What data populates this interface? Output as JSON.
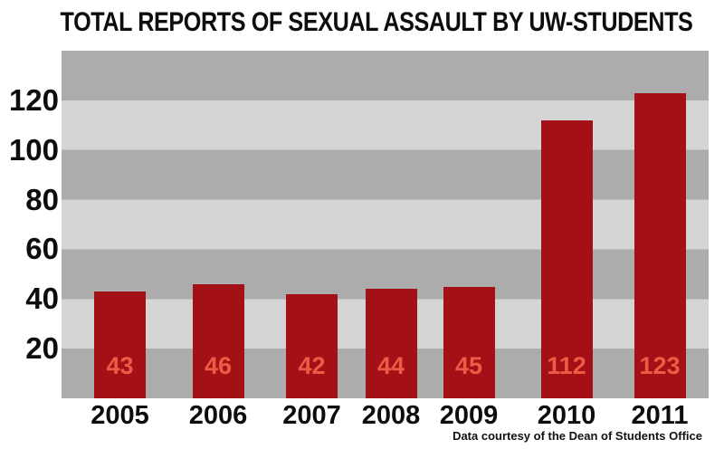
{
  "title": "TOTAL REPORTS OF SEXUAL ASSAULT BY UW-STUDENTS",
  "source_note": "Data courtesy of the Dean of Students Office",
  "chart_data": {
    "type": "bar",
    "title": "TOTAL REPORTS OF SEXUAL ASSAULT BY UW-STUDENTS",
    "categories": [
      "2005",
      "2006",
      "2007",
      "2008",
      "2009",
      "2010",
      "2011"
    ],
    "values": [
      43,
      46,
      42,
      44,
      45,
      112,
      123
    ],
    "xlabel": "",
    "ylabel": "",
    "ylim": [
      0,
      140
    ],
    "yticks": [
      20,
      40,
      60,
      80,
      100,
      120
    ],
    "bar_value_labels": [
      "43",
      "46",
      "42",
      "44",
      "45",
      "112",
      "123"
    ],
    "legend": "none",
    "grid": "alternating horizontal gray bands every 20 units",
    "annotation": "Data courtesy of the Dean of Students Office",
    "colors": {
      "bar": "#a31016",
      "bar_value_label": "#ee5a44",
      "band_dark": "#acacac",
      "band_light": "#d5d5d5",
      "text": "#0d0d0d",
      "background": "#ffffff"
    }
  }
}
